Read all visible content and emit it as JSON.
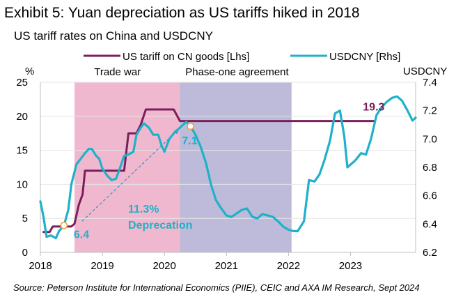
{
  "exhibit_title": "Exhibit 5: Yuan depreciation as US tariffs hiked in 2018",
  "source": "Source: Peterson Institute for International Economics (PIIE), CEIC and AXA IM Research, Sept 2024",
  "chart_data": {
    "type": "line",
    "title": "US tariff rates on China and USDCNY",
    "left_axis": {
      "label": "%",
      "ylim": [
        0,
        25
      ],
      "ticks": [
        0,
        5,
        10,
        15,
        20,
        25
      ]
    },
    "right_axis": {
      "label": "USDCNY",
      "ylim": [
        6.2,
        7.4
      ],
      "ticks": [
        "6.2",
        "6.4",
        "6.6",
        "6.8",
        "7.0",
        "7.2",
        "7.4"
      ]
    },
    "x_axis": {
      "range": [
        2018,
        2024.05
      ],
      "ticks": [
        "2018",
        "2019",
        "2020",
        "2021",
        "2022",
        "2023"
      ]
    },
    "legend": {
      "placement": "top"
    },
    "shaded_regions": [
      {
        "label": "Trade war",
        "start": 2018.55,
        "end": 2020.25,
        "color": "#f0b8ce"
      },
      {
        "label": "Phase-one agreement",
        "start": 2020.25,
        "end": 2022.05,
        "color": "#bdbbd9"
      }
    ],
    "series": [
      {
        "name": "US tariff on CN goods [Lhs]",
        "axis": "left",
        "color": "#7b1f5c",
        "points": [
          [
            2018.05,
            3
          ],
          [
            2018.15,
            3
          ],
          [
            2018.2,
            3.8
          ],
          [
            2018.5,
            3.8
          ],
          [
            2018.55,
            4.2
          ],
          [
            2018.62,
            7
          ],
          [
            2018.68,
            8.5
          ],
          [
            2018.72,
            12
          ],
          [
            2019.35,
            12
          ],
          [
            2019.42,
            17.5
          ],
          [
            2019.55,
            17.5
          ],
          [
            2019.62,
            18.8
          ],
          [
            2019.7,
            21
          ],
          [
            2020.15,
            21
          ],
          [
            2020.25,
            19.3
          ],
          [
            2023.38,
            19.3
          ]
        ]
      },
      {
        "name": "USDCNY [Rhs]",
        "axis": "right",
        "color": "#1fb1c9",
        "points": [
          [
            2018,
            6.56
          ],
          [
            2018.05,
            6.45
          ],
          [
            2018.1,
            6.31
          ],
          [
            2018.17,
            6.32
          ],
          [
            2018.25,
            6.3
          ],
          [
            2018.3,
            6.35
          ],
          [
            2018.38,
            6.39
          ],
          [
            2018.45,
            6.5
          ],
          [
            2018.5,
            6.68
          ],
          [
            2018.58,
            6.82
          ],
          [
            2018.65,
            6.86
          ],
          [
            2018.72,
            6.9
          ],
          [
            2018.78,
            6.93
          ],
          [
            2018.83,
            6.93
          ],
          [
            2018.9,
            6.88
          ],
          [
            2018.95,
            6.86
          ],
          [
            2019,
            6.79
          ],
          [
            2019.08,
            6.74
          ],
          [
            2019.15,
            6.71
          ],
          [
            2019.22,
            6.72
          ],
          [
            2019.28,
            6.79
          ],
          [
            2019.35,
            6.88
          ],
          [
            2019.42,
            6.89
          ],
          [
            2019.5,
            6.91
          ],
          [
            2019.55,
            7.03
          ],
          [
            2019.62,
            7.08
          ],
          [
            2019.67,
            7.11
          ],
          [
            2019.75,
            7.08
          ],
          [
            2019.82,
            7.03
          ],
          [
            2019.9,
            7.03
          ],
          [
            2019.95,
            6.96
          ],
          [
            2020,
            6.91
          ],
          [
            2020.08,
            7.0
          ],
          [
            2020.17,
            7.05
          ],
          [
            2020.25,
            7.08
          ],
          [
            2020.35,
            7.12
          ],
          [
            2020.42,
            7.09
          ],
          [
            2020.5,
            7.03
          ],
          [
            2020.58,
            6.95
          ],
          [
            2020.67,
            6.83
          ],
          [
            2020.75,
            6.68
          ],
          [
            2020.83,
            6.57
          ],
          [
            2020.9,
            6.52
          ],
          [
            2021,
            6.46
          ],
          [
            2021.08,
            6.45
          ],
          [
            2021.15,
            6.47
          ],
          [
            2021.25,
            6.5
          ],
          [
            2021.33,
            6.51
          ],
          [
            2021.42,
            6.45
          ],
          [
            2021.5,
            6.44
          ],
          [
            2021.58,
            6.47
          ],
          [
            2021.67,
            6.46
          ],
          [
            2021.75,
            6.45
          ],
          [
            2021.83,
            6.42
          ],
          [
            2021.92,
            6.38
          ],
          [
            2022,
            6.36
          ],
          [
            2022.08,
            6.35
          ],
          [
            2022.15,
            6.35
          ],
          [
            2022.25,
            6.42
          ],
          [
            2022.33,
            6.71
          ],
          [
            2022.42,
            6.7
          ],
          [
            2022.5,
            6.75
          ],
          [
            2022.58,
            6.85
          ],
          [
            2022.67,
            6.99
          ],
          [
            2022.75,
            7.18
          ],
          [
            2022.83,
            7.2
          ],
          [
            2022.9,
            7.02
          ],
          [
            2022.95,
            6.8
          ],
          [
            2023.08,
            6.85
          ],
          [
            2023.17,
            6.9
          ],
          [
            2023.25,
            6.89
          ],
          [
            2023.33,
            7.0
          ],
          [
            2023.42,
            7.17
          ],
          [
            2023.5,
            7.22
          ],
          [
            2023.58,
            7.26
          ],
          [
            2023.67,
            7.29
          ],
          [
            2023.75,
            7.3
          ],
          [
            2023.83,
            7.27
          ],
          [
            2023.92,
            7.2
          ],
          [
            2024,
            7.13
          ],
          [
            2024.05,
            7.15
          ]
        ]
      }
    ],
    "annotations": [
      {
        "text": "6.4",
        "x": 2018.38,
        "y": 6.39,
        "color": "#1fb1c9"
      },
      {
        "text": "7.1",
        "x": 2020.35,
        "y": 7.08,
        "color": "#1fb1c9"
      },
      {
        "text": "19.3",
        "x": 2023.2,
        "y": 19.3,
        "color": "#7b1f5c"
      },
      {
        "text": "11.3%",
        "color": "#1fb1c9"
      },
      {
        "text": "Deprecation",
        "color": "#1fb1c9"
      }
    ],
    "markers": [
      {
        "x": 2018.38,
        "y": 6.39,
        "axis": "right"
      },
      {
        "x": 2020.42,
        "y": 7.09,
        "axis": "right"
      }
    ]
  }
}
